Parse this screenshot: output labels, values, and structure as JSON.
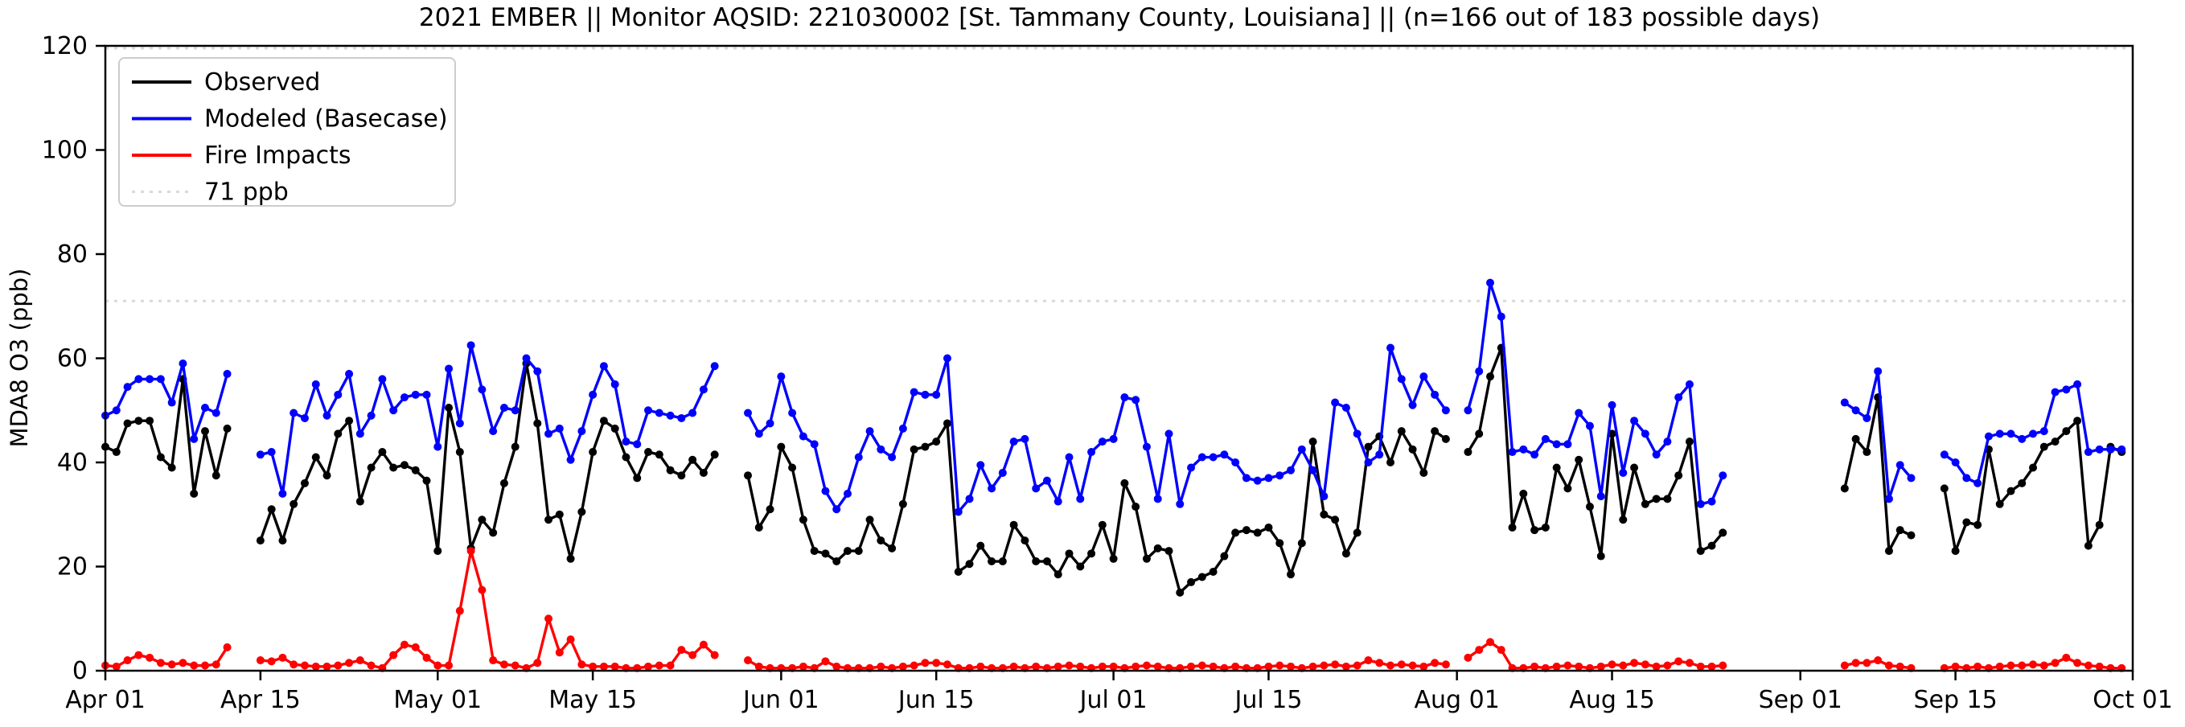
{
  "title": "2021 EMBER || Monitor AQSID: 221030002 [St. Tammany County, Louisiana] || (n=166 out of 183 possible days)",
  "colors": {
    "observed": "#000000",
    "modeled": "#0000ff",
    "fire": "#ff0000",
    "threshold": "#d9d9d9",
    "axis": "#000000",
    "legend_border": "#cccccc"
  },
  "legend": {
    "items": [
      {
        "label": "Observed",
        "color": "#000000",
        "style": "solid"
      },
      {
        "label": "Modeled (Basecase)",
        "color": "#0000ff",
        "style": "solid"
      },
      {
        "label": "Fire Impacts",
        "color": "#ff0000",
        "style": "solid"
      },
      {
        "label": "71 ppb",
        "color": "#d9d9d9",
        "style": "dotted"
      }
    ]
  },
  "chart_data": {
    "type": "line",
    "title": "2021 EMBER || Monitor AQSID: 221030002 [St. Tammany County, Louisiana] || (n=166 out of 183 possible days)",
    "xlabel": "",
    "ylabel": "MDA8 O3 (ppb)",
    "ylim": [
      0,
      120
    ],
    "y_ticks": [
      0,
      20,
      40,
      60,
      80,
      100,
      120
    ],
    "x_start": "Apr 01",
    "x_end": "Oct 01",
    "n_days": 183,
    "x_ticks": [
      {
        "label": "Apr 01",
        "day": 0
      },
      {
        "label": "Apr 15",
        "day": 14
      },
      {
        "label": "May 01",
        "day": 30
      },
      {
        "label": "May 15",
        "day": 44
      },
      {
        "label": "Jun 01",
        "day": 61
      },
      {
        "label": "Jun 15",
        "day": 75
      },
      {
        "label": "Jul 01",
        "day": 91
      },
      {
        "label": "Jul 15",
        "day": 105
      },
      {
        "label": "Aug 01",
        "day": 122
      },
      {
        "label": "Aug 15",
        "day": 136
      },
      {
        "label": "Sep 01",
        "day": 153
      },
      {
        "label": "Sep 15",
        "day": 167
      },
      {
        "label": "Oct 01",
        "day": 183
      }
    ],
    "threshold": {
      "value": 71,
      "label": "71 ppb"
    },
    "grid": false,
    "legend_position": "upper-left",
    "series": [
      {
        "name": "Observed",
        "color": "#000000",
        "values": [
          43,
          42,
          47.5,
          48,
          48,
          41,
          39,
          56,
          34,
          46,
          37.5,
          46.5,
          null,
          null,
          25,
          31,
          25,
          32,
          36,
          41,
          37.5,
          45.5,
          48,
          32.5,
          39,
          42,
          39,
          39.5,
          38.5,
          36.5,
          23,
          50.5,
          42,
          23.5,
          29,
          26.5,
          36,
          43,
          59,
          47.5,
          29,
          30,
          21.5,
          30.5,
          42,
          48,
          46.5,
          41,
          37,
          42,
          41.5,
          38.5,
          37.5,
          40.5,
          38,
          41.5,
          null,
          null,
          37.5,
          27.5,
          31,
          43,
          39,
          29,
          23,
          22.5,
          21,
          23,
          23,
          29,
          25,
          23.5,
          32,
          42.5,
          43,
          44,
          47.5,
          19,
          20.5,
          24,
          21,
          21,
          28,
          25,
          21,
          21,
          18.5,
          22.5,
          20,
          22.5,
          28,
          21.5,
          36,
          31.5,
          21.5,
          23.5,
          23,
          15,
          17,
          18,
          19,
          22,
          26.5,
          27,
          26.5,
          27.5,
          24.5,
          18.5,
          24.5,
          44,
          30,
          29,
          22.5,
          26.5,
          43,
          45,
          40,
          46,
          42.5,
          38,
          46,
          44.5,
          null,
          42,
          45.5,
          56.5,
          62,
          27.5,
          34,
          27,
          27.5,
          39,
          35,
          40.5,
          31.5,
          22,
          45.5,
          29,
          39,
          32,
          33,
          33,
          37.5,
          44,
          23,
          24,
          26.5,
          null,
          null,
          null,
          null,
          null,
          null,
          null,
          null,
          null,
          null,
          35,
          44.5,
          42,
          52.5,
          23,
          27,
          26,
          null,
          null,
          35,
          23,
          28.5,
          28,
          42.5,
          32,
          34.5,
          36,
          39,
          43,
          44,
          46,
          48,
          24,
          28,
          43,
          42
        ]
      },
      {
        "name": "Modeled (Basecase)",
        "color": "#0000ff",
        "values": [
          49,
          50,
          54.5,
          56,
          56,
          56,
          51.5,
          59,
          44.5,
          50.5,
          49.5,
          57,
          null,
          null,
          41.5,
          42,
          34,
          49.5,
          48.5,
          55,
          49,
          53,
          57,
          45.5,
          49,
          56,
          50,
          52.5,
          53,
          53,
          43,
          58,
          47.5,
          62.5,
          54,
          46,
          50.5,
          50,
          60,
          57.5,
          45.5,
          46.5,
          40.5,
          46,
          53,
          58.5,
          55,
          44,
          43.5,
          50,
          49.5,
          49,
          48.5,
          49.5,
          54,
          58.5,
          null,
          null,
          49.5,
          45.5,
          47.5,
          56.5,
          49.5,
          45,
          43.5,
          34.5,
          31,
          34,
          41,
          46,
          42.5,
          41,
          46.5,
          53.5,
          53,
          53,
          60,
          30.5,
          33,
          39.5,
          35,
          38,
          44,
          44.5,
          35,
          36.5,
          32.5,
          41,
          33,
          42,
          44,
          44.5,
          52.5,
          52,
          43,
          33,
          45.5,
          32,
          39,
          41,
          41,
          41.5,
          40,
          37,
          36.5,
          37,
          37.5,
          38.5,
          42.5,
          38.5,
          33.5,
          51.5,
          50.5,
          45.5,
          40,
          41.5,
          62,
          56,
          51,
          56.5,
          53,
          50,
          null,
          50,
          57.5,
          74.5,
          68,
          42,
          42.5,
          41.5,
          44.5,
          43.5,
          43.5,
          49.5,
          47,
          33.5,
          51,
          38,
          48,
          45.5,
          41.5,
          44,
          52.5,
          55,
          32,
          32.5,
          37.5,
          null,
          null,
          null,
          null,
          null,
          null,
          null,
          null,
          null,
          null,
          51.5,
          50,
          48.5,
          57.5,
          33,
          39.5,
          37,
          null,
          null,
          41.5,
          40,
          37,
          36,
          45,
          45.5,
          45.5,
          44.5,
          45.5,
          46,
          53.5,
          54,
          55,
          42,
          42.5,
          42.5,
          42.5
        ]
      },
      {
        "name": "Fire Impacts",
        "color": "#ff0000",
        "values": [
          1,
          0.8,
          2,
          3,
          2.5,
          1.5,
          1.2,
          1.5,
          1,
          1,
          1.2,
          4.5,
          null,
          null,
          2,
          1.8,
          2.5,
          1.2,
          1,
          0.8,
          0.8,
          1,
          1.5,
          2,
          1,
          0.5,
          3,
          5,
          4.5,
          2.5,
          1,
          1,
          11.5,
          23,
          15.5,
          2,
          1.2,
          1,
          0.5,
          1.5,
          10,
          3.5,
          6,
          1.2,
          0.8,
          0.8,
          0.8,
          0.5,
          0.5,
          0.8,
          1,
          1,
          4,
          3,
          5,
          3,
          null,
          null,
          2,
          0.8,
          0.5,
          0.5,
          0.5,
          0.8,
          0.5,
          1.8,
          0.8,
          0.5,
          0.5,
          0.5,
          0.8,
          0.5,
          0.8,
          1,
          1.5,
          1.5,
          1.2,
          0.5,
          0.5,
          0.8,
          0.5,
          0.5,
          0.8,
          0.5,
          0.8,
          0.5,
          0.8,
          1,
          0.8,
          0.5,
          0.8,
          0.8,
          0.5,
          0.8,
          1,
          0.8,
          0.5,
          0.5,
          0.8,
          1,
          0.8,
          0.5,
          0.8,
          0.5,
          0.5,
          0.8,
          1,
          0.8,
          0.5,
          0.8,
          1,
          1.2,
          0.8,
          1,
          2,
          1.5,
          1,
          1.2,
          1,
          0.8,
          1.5,
          1.2,
          null,
          2.5,
          4,
          5.5,
          4,
          0.5,
          0.5,
          0.8,
          0.5,
          0.8,
          1,
          0.8,
          0.5,
          0.8,
          1.2,
          1,
          1.5,
          1.2,
          0.8,
          1,
          1.8,
          1.5,
          0.8,
          0.8,
          1,
          null,
          null,
          null,
          null,
          null,
          null,
          null,
          null,
          null,
          null,
          1,
          1.5,
          1.5,
          2,
          1,
          0.8,
          0.5,
          null,
          null,
          0.5,
          0.8,
          0.5,
          0.8,
          0.5,
          0.8,
          1,
          1,
          1.2,
          1,
          1.5,
          2.5,
          1.5,
          1,
          0.8,
          0.5,
          0.5
        ]
      }
    ]
  }
}
